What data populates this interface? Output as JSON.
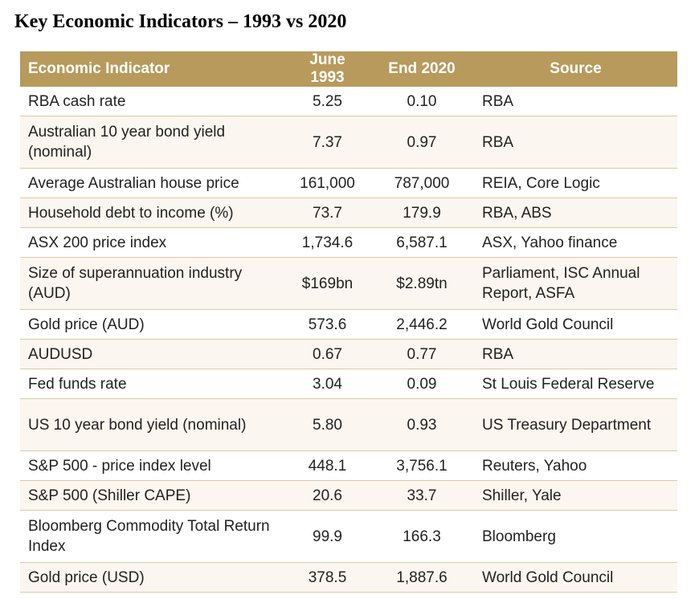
{
  "title": "Key Economic Indicators – 1993 vs 2020",
  "headers": [
    "Economic Indicator",
    "June 1993",
    "End 2020",
    "Source"
  ],
  "colors": {
    "header_bg": "#b89a5c",
    "alt_row_bg": "#fbf6ef",
    "row_border": "#dcc9a2"
  },
  "rows": [
    {
      "indicator": "RBA cash rate",
      "june1993": "5.25",
      "end2020": "0.10",
      "source": "RBA"
    },
    {
      "indicator": "Australian 10 year bond yield (nominal)",
      "june1993": "7.37",
      "end2020": "0.97",
      "source": "RBA"
    },
    {
      "indicator": "Average Australian house price",
      "june1993": "161,000",
      "end2020": "787,000",
      "source": "REIA, Core Logic"
    },
    {
      "indicator": "Household debt to income (%)",
      "june1993": "73.7",
      "end2020": "179.9",
      "source": "RBA, ABS"
    },
    {
      "indicator": "ASX 200 price index",
      "june1993": "1,734.6",
      "end2020": "6,587.1",
      "source": "ASX, Yahoo finance"
    },
    {
      "indicator": "Size of superannuation industry (AUD)",
      "june1993": "$169bn",
      "end2020": "$2.89tn",
      "source": "Parliament, ISC Annual Report, ASFA"
    },
    {
      "indicator": "Gold price (AUD)",
      "june1993": "573.6",
      "end2020": "2,446.2",
      "source": "World Gold Council"
    },
    {
      "indicator": "AUDUSD",
      "june1993": "0.67",
      "end2020": "0.77",
      "source": "RBA"
    },
    {
      "indicator": "Fed funds rate",
      "june1993": "3.04",
      "end2020": "0.09",
      "source": "St Louis Federal Reserve"
    },
    {
      "indicator": "US 10 year bond yield (nominal)",
      "june1993": "5.80",
      "end2020": "0.93",
      "source": "US Treasury Department"
    },
    {
      "indicator": "S&P 500 - price index level",
      "june1993": "448.1",
      "end2020": "3,756.1",
      "source": "Reuters, Yahoo"
    },
    {
      "indicator": "S&P 500 (Shiller CAPE)",
      "june1993": "20.6",
      "end2020": "33.7",
      "source": "Shiller, Yale"
    },
    {
      "indicator": "Bloomberg Commodity Total Return Index",
      "june1993": "99.9",
      "end2020": "166.3",
      "source": "Bloomberg"
    },
    {
      "indicator": "Gold price (USD)",
      "june1993": "378.5",
      "end2020": "1,887.6",
      "source": "World Gold Council"
    }
  ]
}
